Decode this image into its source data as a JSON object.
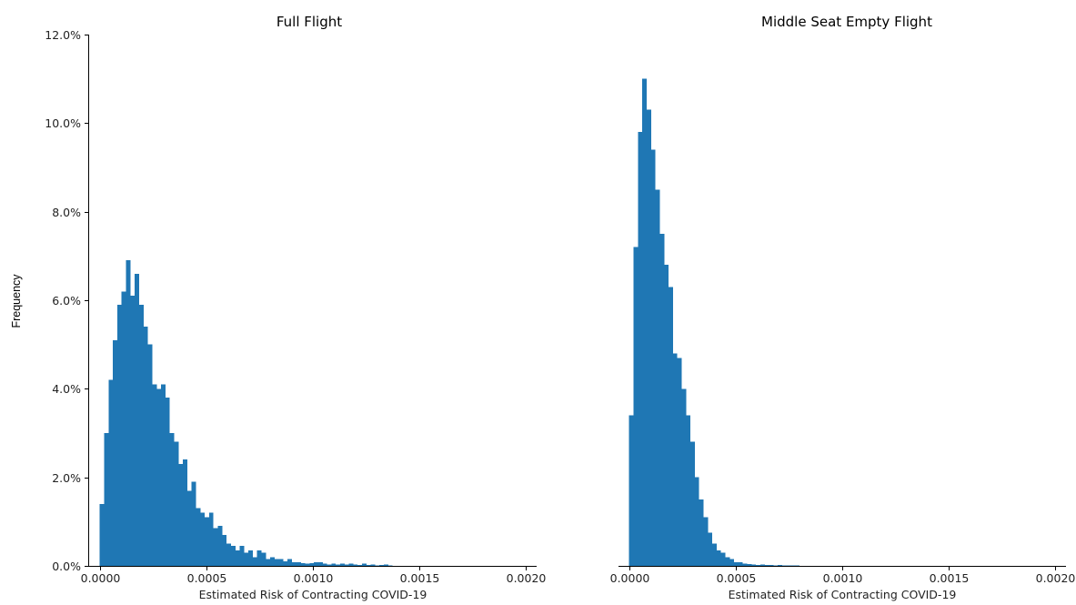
{
  "figure": {
    "ylabel": "Frequency",
    "bar_color": "#1f77b4"
  },
  "chart_data": [
    {
      "type": "bar",
      "title": "Full Flight",
      "xlabel": "Estimated Risk of Contracting COVID-19",
      "ylabel": "Frequency",
      "xlim": [
        -5e-05,
        0.00205
      ],
      "ylim": [
        0,
        0.12
      ],
      "x_ticks": [
        0.0,
        0.0005,
        0.001,
        0.0015,
        0.002
      ],
      "x_tick_labels": [
        "0.0000",
        "0.0005",
        "0.0010",
        "0.0015",
        "0.0020"
      ],
      "y_ticks": [
        0,
        0.02,
        0.04,
        0.06,
        0.08,
        0.1,
        0.12
      ],
      "y_tick_labels": [
        "0.0%",
        "2.0%",
        "4.0%",
        "6.0%",
        "8.0%",
        "10.0%",
        "12.0%"
      ],
      "bin_width": 2.05e-05,
      "bins_start": [
        0.0,
        2.05e-05,
        4.1e-05,
        6.15e-05,
        8.2e-05,
        0.0001025,
        0.000123,
        0.0001435,
        0.000164,
        0.0001845,
        0.000205,
        0.0002255,
        0.000246,
        0.0002665,
        0.000287,
        0.0003075,
        0.000328,
        0.0003485,
        0.000369,
        0.0003895,
        0.00041,
        0.0004305,
        0.000451,
        0.0004715,
        0.000492,
        0.0005125,
        0.000533,
        0.0005535,
        0.000574,
        0.0005945,
        0.000615,
        0.0006355,
        0.000656,
        0.0006765,
        0.000697,
        0.0007175,
        0.000738,
        0.0007585,
        0.000779,
        0.0007995,
        0.00082,
        0.0008405,
        0.000861,
        0.0008815,
        0.000902,
        0.0009225,
        0.000943,
        0.0009635,
        0.000984,
        0.0010045,
        0.001025,
        0.0010455,
        0.001066,
        0.0010865,
        0.001107,
        0.0011275,
        0.001148,
        0.0011685,
        0.001189,
        0.0012095,
        0.00123,
        0.0012505,
        0.001271,
        0.0012915,
        0.001312,
        0.0013325,
        0.001353
      ],
      "values": [
        0.014,
        0.03,
        0.042,
        0.051,
        0.059,
        0.062,
        0.069,
        0.061,
        0.066,
        0.059,
        0.054,
        0.05,
        0.041,
        0.04,
        0.041,
        0.038,
        0.03,
        0.028,
        0.023,
        0.024,
        0.017,
        0.019,
        0.013,
        0.012,
        0.011,
        0.012,
        0.0085,
        0.009,
        0.007,
        0.005,
        0.0045,
        0.0035,
        0.0045,
        0.003,
        0.0035,
        0.002,
        0.0035,
        0.003,
        0.0015,
        0.002,
        0.0015,
        0.0015,
        0.001,
        0.0015,
        0.0008,
        0.0008,
        0.0006,
        0.0005,
        0.0006,
        0.0008,
        0.0008,
        0.0005,
        0.0003,
        0.0005,
        0.0003,
        0.0005,
        0.0003,
        0.0005,
        0.0003,
        0.0002,
        0.0005,
        0.0002,
        0.0003,
        0.0001,
        0.0002,
        0.0003,
        0.0001
      ]
    },
    {
      "type": "bar",
      "title": "Middle Seat Empty Flight",
      "xlabel": "Estimated Risk of Contracting COVID-19",
      "ylabel": "",
      "xlim": [
        -5e-05,
        0.00205
      ],
      "ylim": [
        0,
        0.12
      ],
      "x_ticks": [
        0.0,
        0.0005,
        0.001,
        0.0015,
        0.002
      ],
      "x_tick_labels": [
        "0.0000",
        "0.0005",
        "0.0010",
        "0.0015",
        "0.0020"
      ],
      "bin_width": 2.05e-05,
      "bins_start": [
        0.0,
        2.05e-05,
        4.1e-05,
        6.15e-05,
        8.2e-05,
        0.0001025,
        0.000123,
        0.0001435,
        0.000164,
        0.0001845,
        0.000205,
        0.0002255,
        0.000246,
        0.0002665,
        0.000287,
        0.0003075,
        0.000328,
        0.0003485,
        0.000369,
        0.0003895,
        0.00041,
        0.0004305,
        0.000451,
        0.0004715,
        0.000492,
        0.0005125,
        0.000533,
        0.0005535,
        0.000574,
        0.0005945,
        0.000615,
        0.0006355,
        0.000656,
        0.0006765,
        0.000697,
        0.0007175,
        0.000738,
        0.0007585,
        0.000779,
        0.0007995,
        0.00082
      ],
      "values": [
        0.034,
        0.072,
        0.098,
        0.11,
        0.103,
        0.094,
        0.085,
        0.075,
        0.068,
        0.063,
        0.048,
        0.047,
        0.04,
        0.034,
        0.028,
        0.02,
        0.015,
        0.011,
        0.0075,
        0.005,
        0.0035,
        0.003,
        0.002,
        0.0015,
        0.0008,
        0.0008,
        0.0005,
        0.0004,
        0.0003,
        0.0002,
        0.0003,
        0.0002,
        0.0002,
        0.0001,
        0.0002,
        0.0001,
        0.0001,
        0.0001,
        0.0001,
        5e-05,
        5e-05
      ]
    }
  ]
}
